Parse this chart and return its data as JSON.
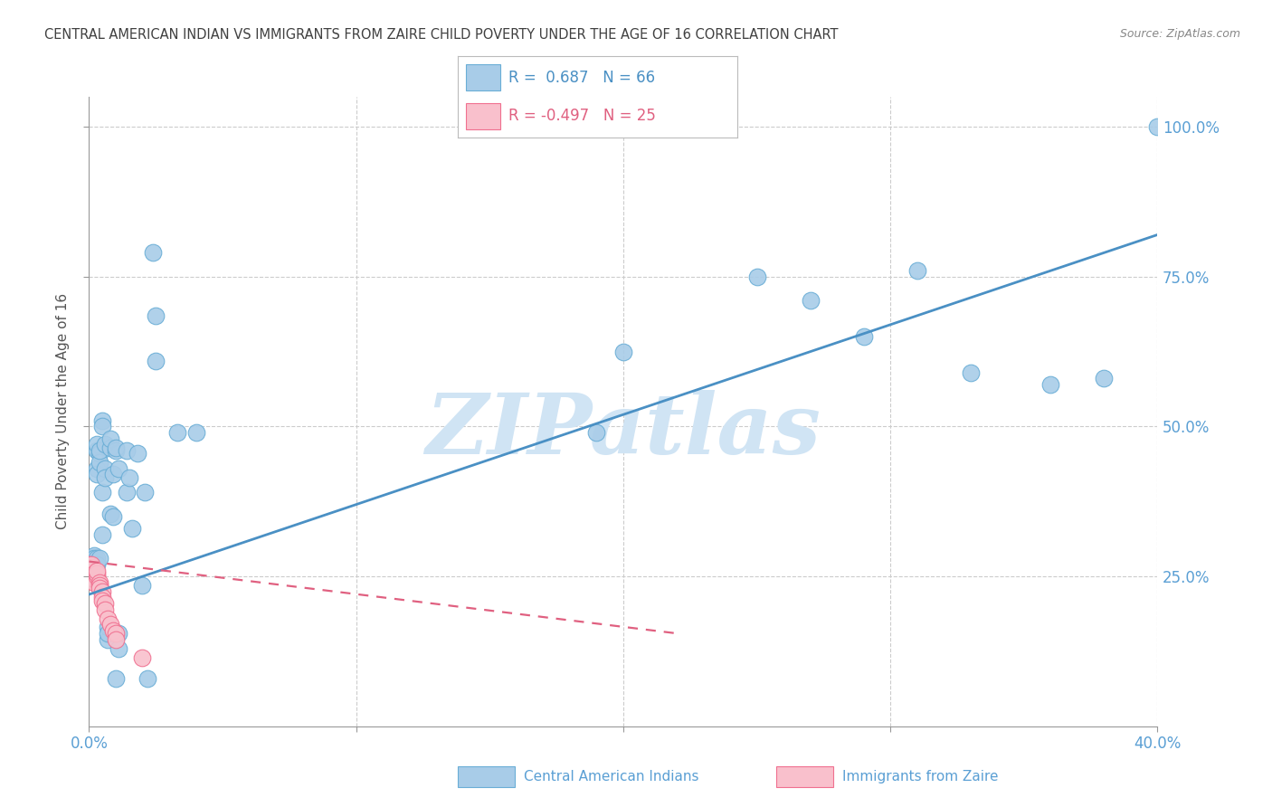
{
  "title": "CENTRAL AMERICAN INDIAN VS IMMIGRANTS FROM ZAIRE CHILD POVERTY UNDER THE AGE OF 16 CORRELATION CHART",
  "source": "Source: ZipAtlas.com",
  "ylabel": "Child Poverty Under the Age of 16",
  "yticks": [
    "25.0%",
    "50.0%",
    "75.0%",
    "100.0%"
  ],
  "ytick_vals": [
    0.25,
    0.5,
    0.75,
    1.0
  ],
  "legend_label1": "Central American Indians",
  "legend_label2": "Immigrants from Zaire",
  "watermark": "ZIPatlas",
  "blue_color": "#a8cce8",
  "blue_edge_color": "#6aaed6",
  "pink_color": "#f9c0cc",
  "pink_edge_color": "#f07090",
  "blue_line_color": "#4a90c4",
  "pink_line_color": "#e06080",
  "axis_label_color": "#5a9fd4",
  "tick_label_color": "#5a9fd4",
  "title_color": "#404040",
  "source_color": "#888888",
  "grid_color": "#cccccc",
  "watermark_color": "#d0e4f4",
  "blue_R": 0.687,
  "blue_N": 66,
  "pink_R": -0.497,
  "pink_N": 25,
  "blue_scatter": [
    [
      0.0,
      0.27
    ],
    [
      0.001,
      0.28
    ],
    [
      0.001,
      0.265
    ],
    [
      0.001,
      0.27
    ],
    [
      0.001,
      0.275
    ],
    [
      0.002,
      0.285
    ],
    [
      0.002,
      0.27
    ],
    [
      0.002,
      0.265
    ],
    [
      0.002,
      0.26
    ],
    [
      0.002,
      0.275
    ],
    [
      0.002,
      0.28
    ],
    [
      0.003,
      0.275
    ],
    [
      0.003,
      0.28
    ],
    [
      0.003,
      0.27
    ],
    [
      0.003,
      0.43
    ],
    [
      0.003,
      0.42
    ],
    [
      0.003,
      0.46
    ],
    [
      0.003,
      0.47
    ],
    [
      0.004,
      0.455
    ],
    [
      0.004,
      0.44
    ],
    [
      0.004,
      0.46
    ],
    [
      0.004,
      0.28
    ],
    [
      0.005,
      0.51
    ],
    [
      0.005,
      0.5
    ],
    [
      0.005,
      0.39
    ],
    [
      0.005,
      0.32
    ],
    [
      0.006,
      0.43
    ],
    [
      0.006,
      0.415
    ],
    [
      0.006,
      0.47
    ],
    [
      0.007,
      0.145
    ],
    [
      0.007,
      0.165
    ],
    [
      0.007,
      0.155
    ],
    [
      0.008,
      0.355
    ],
    [
      0.008,
      0.465
    ],
    [
      0.008,
      0.48
    ],
    [
      0.009,
      0.42
    ],
    [
      0.009,
      0.35
    ],
    [
      0.01,
      0.46
    ],
    [
      0.01,
      0.465
    ],
    [
      0.01,
      0.08
    ],
    [
      0.011,
      0.43
    ],
    [
      0.011,
      0.155
    ],
    [
      0.011,
      0.13
    ],
    [
      0.014,
      0.39
    ],
    [
      0.014,
      0.46
    ],
    [
      0.015,
      0.415
    ],
    [
      0.016,
      0.33
    ],
    [
      0.018,
      0.455
    ],
    [
      0.02,
      0.235
    ],
    [
      0.021,
      0.39
    ],
    [
      0.022,
      0.08
    ],
    [
      0.024,
      0.79
    ],
    [
      0.025,
      0.685
    ],
    [
      0.025,
      0.61
    ],
    [
      0.033,
      0.49
    ],
    [
      0.04,
      0.49
    ],
    [
      0.19,
      0.49
    ],
    [
      0.2,
      0.625
    ],
    [
      0.25,
      0.75
    ],
    [
      0.27,
      0.71
    ],
    [
      0.29,
      0.65
    ],
    [
      0.31,
      0.76
    ],
    [
      0.33,
      0.59
    ],
    [
      0.36,
      0.57
    ],
    [
      0.38,
      0.58
    ],
    [
      0.4,
      1.0
    ]
  ],
  "pink_scatter": [
    [
      0.0,
      0.27
    ],
    [
      0.001,
      0.265
    ],
    [
      0.001,
      0.26
    ],
    [
      0.001,
      0.27
    ],
    [
      0.002,
      0.255
    ],
    [
      0.002,
      0.25
    ],
    [
      0.002,
      0.245
    ],
    [
      0.002,
      0.24
    ],
    [
      0.003,
      0.25
    ],
    [
      0.003,
      0.255
    ],
    [
      0.003,
      0.26
    ],
    [
      0.004,
      0.24
    ],
    [
      0.004,
      0.235
    ],
    [
      0.004,
      0.23
    ],
    [
      0.005,
      0.225
    ],
    [
      0.005,
      0.215
    ],
    [
      0.005,
      0.21
    ],
    [
      0.006,
      0.205
    ],
    [
      0.006,
      0.195
    ],
    [
      0.007,
      0.18
    ],
    [
      0.008,
      0.17
    ],
    [
      0.009,
      0.16
    ],
    [
      0.01,
      0.155
    ],
    [
      0.01,
      0.145
    ],
    [
      0.02,
      0.115
    ]
  ],
  "xlim": [
    0.0,
    0.4
  ],
  "ylim": [
    0.0,
    1.05
  ],
  "blue_line_x": [
    0.0,
    0.4
  ],
  "blue_line_y": [
    0.22,
    0.82
  ],
  "pink_line_x": [
    0.0,
    0.22
  ],
  "pink_line_y": [
    0.275,
    0.155
  ]
}
